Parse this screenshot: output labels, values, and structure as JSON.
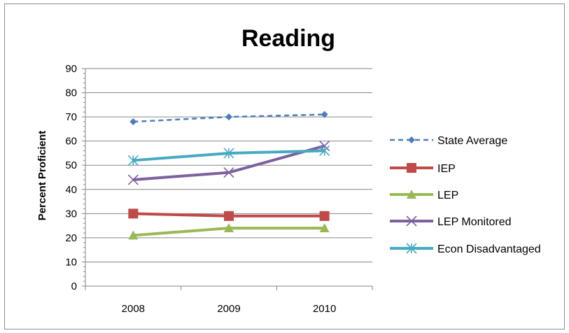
{
  "chart_data": {
    "type": "line",
    "title": "Reading",
    "xlabel": "",
    "ylabel": "Percent Proficient",
    "categories": [
      "2008",
      "2009",
      "2010"
    ],
    "ylim": [
      0,
      90
    ],
    "yticks": [
      0,
      10,
      20,
      30,
      40,
      50,
      60,
      70,
      80,
      90
    ],
    "grid": "horizontal",
    "legend_position": "right",
    "series": [
      {
        "name": "State Average",
        "values": [
          68,
          70,
          71
        ],
        "color": "#4a7ebb",
        "dash": "dashed",
        "marker": "diamond"
      },
      {
        "name": "IEP",
        "values": [
          30,
          29,
          29
        ],
        "color": "#be4b48",
        "dash": "solid",
        "marker": "square"
      },
      {
        "name": "LEP",
        "values": [
          21,
          24,
          24
        ],
        "color": "#98b954",
        "dash": "solid",
        "marker": "triangle"
      },
      {
        "name": "LEP Monitored",
        "values": [
          44,
          47,
          58
        ],
        "color": "#7d60a0",
        "dash": "solid",
        "marker": "x"
      },
      {
        "name": "Econ Disadvantaged",
        "values": [
          52,
          55,
          56
        ],
        "color": "#46aac5",
        "dash": "solid",
        "marker": "star"
      }
    ]
  }
}
